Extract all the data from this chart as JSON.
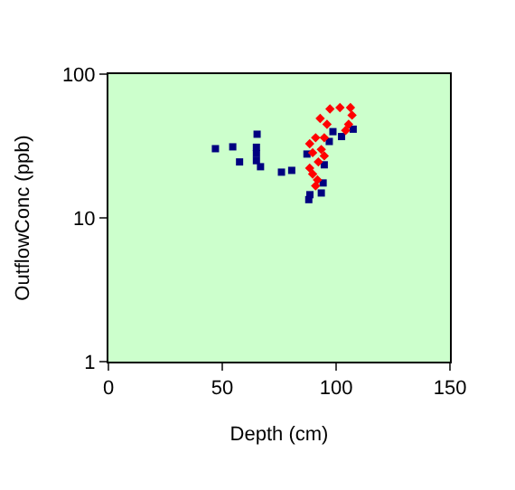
{
  "chart_data": {
    "type": "scatter",
    "xlabel": "Depth (cm)",
    "ylabel": "OutflowConc (ppb)",
    "xlim": [
      0,
      150
    ],
    "xticks": [
      0,
      50,
      100,
      150
    ],
    "ylim": [
      1,
      100
    ],
    "yticks": [
      1,
      10,
      100
    ],
    "log": "y",
    "grid": false,
    "legend": false,
    "marker": "square",
    "series": [
      {
        "color": "#000080",
        "x": [
          47,
          54.6,
          57.6,
          65.3,
          65,
          65,
          65,
          66.8,
          76,
          80.5,
          88,
          88.5,
          93.5,
          94.3,
          87.2,
          94.8,
          98.6,
          102.4,
          107.5,
          97
        ],
        "values": [
          30.3,
          31.2,
          24.5,
          38.2,
          31,
          28,
          25,
          22.7,
          20.8,
          21.4,
          13.4,
          14.5,
          14.9,
          17.5,
          27.8,
          23.4,
          39.8,
          36.8,
          41.4,
          34
        ]
      },
      {
        "color": "#ff0000",
        "marker": "diamond",
        "x": [
          97.3,
          101.7,
          106.3,
          107,
          105.5,
          93,
          96,
          88.4,
          91,
          89.7,
          93.5,
          92.2,
          89.7,
          91,
          94.8,
          94.8,
          91.8,
          104.2,
          88.4
        ],
        "values": [
          57.3,
          58.5,
          58.5,
          51.8,
          44.8,
          49.2,
          44.8,
          32.8,
          36.1,
          28.4,
          29.9,
          24.5,
          20.2,
          16.7,
          27,
          36.1,
          18.4,
          40.6,
          22.2
        ]
      }
    ]
  }
}
